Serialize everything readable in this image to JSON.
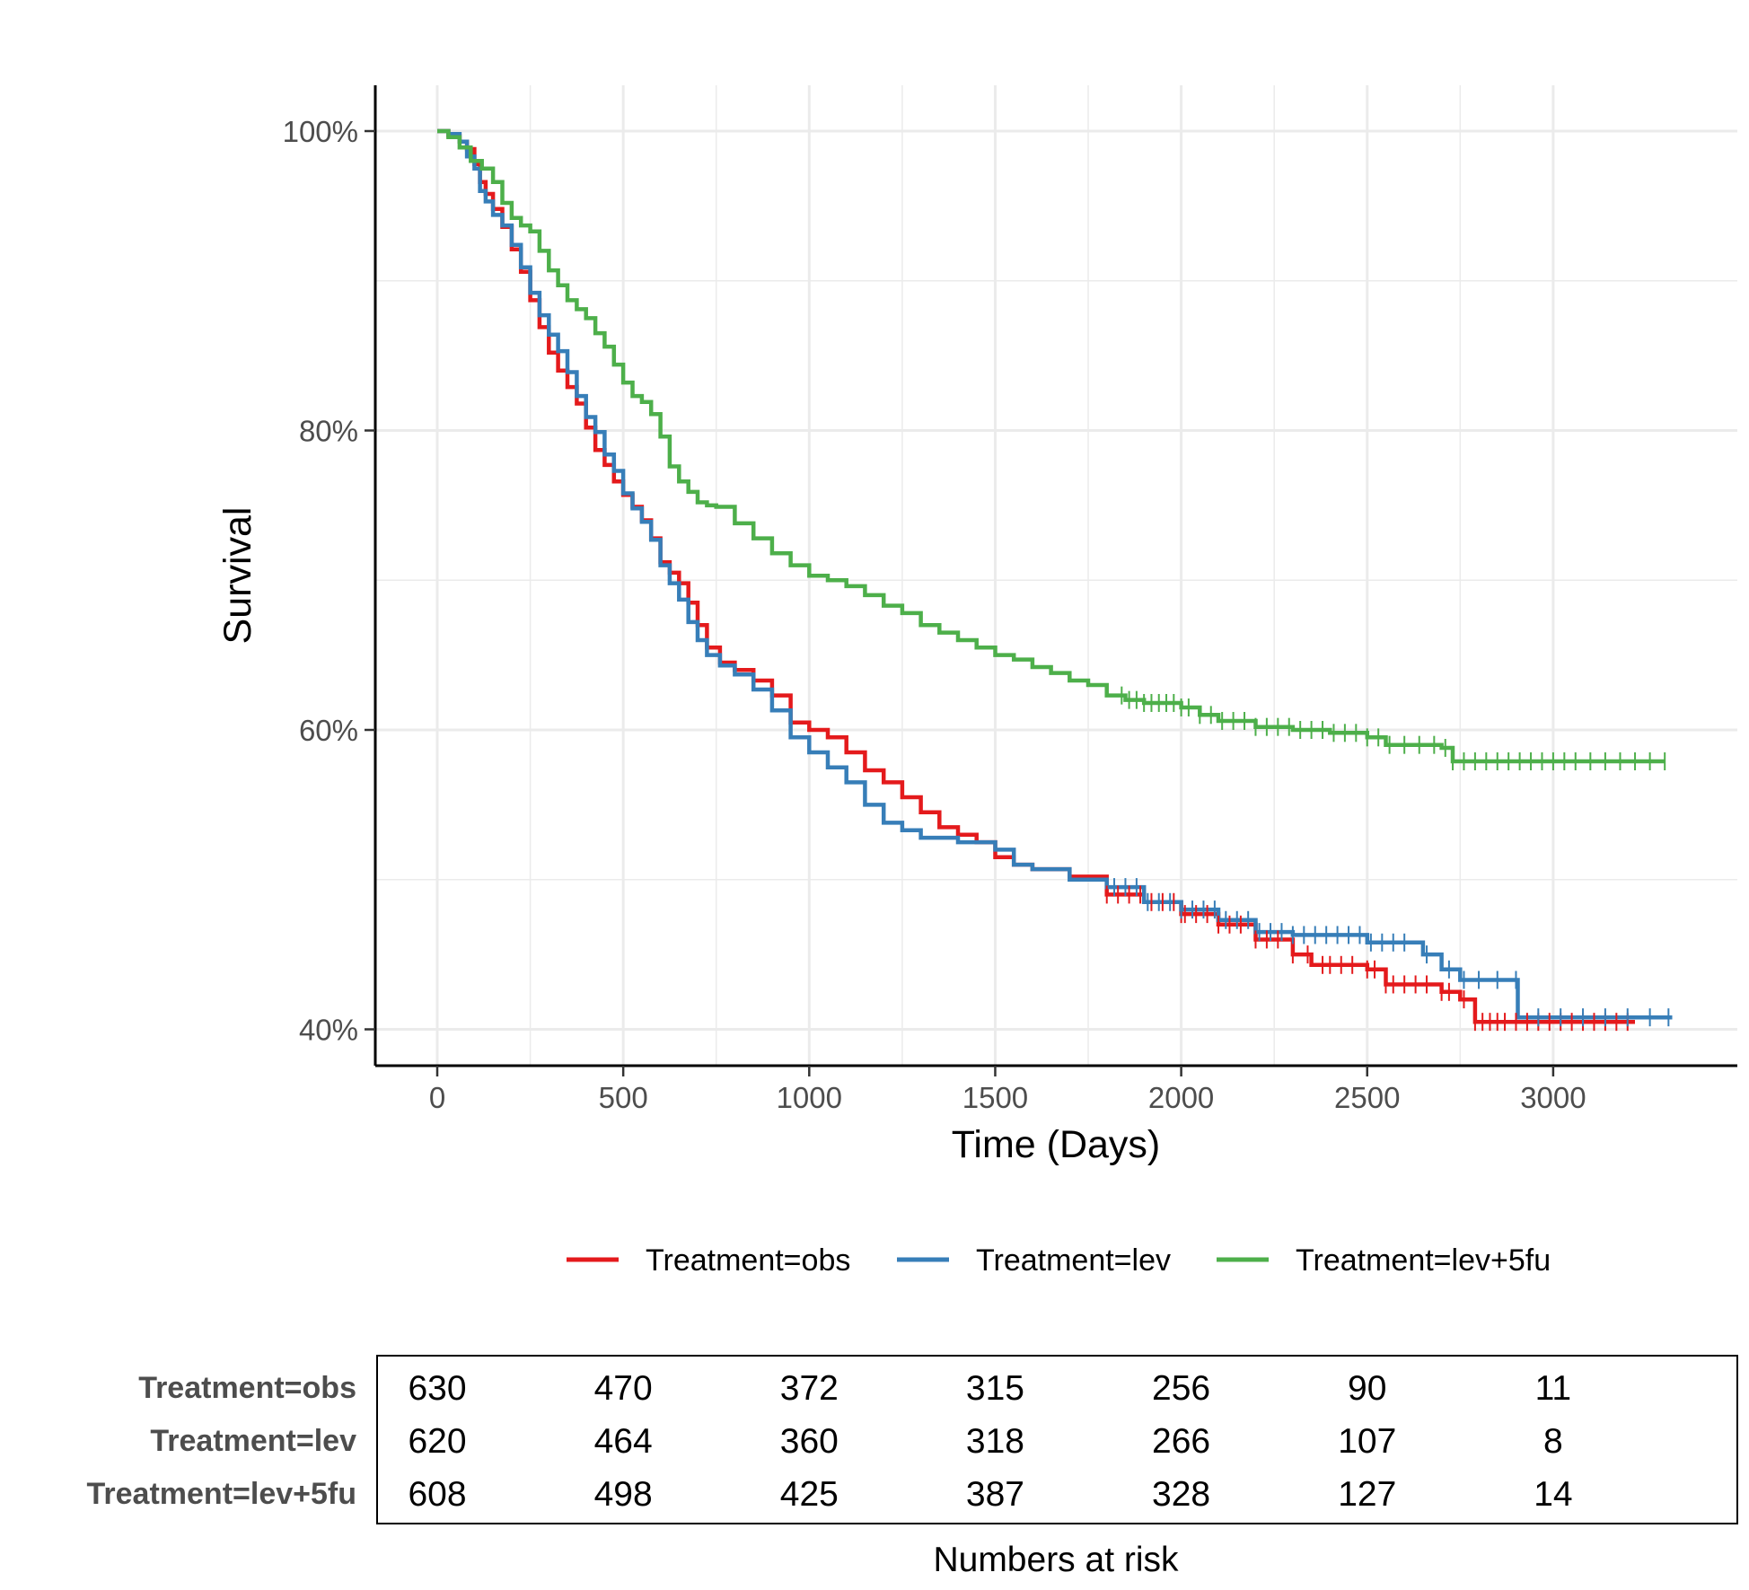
{
  "chart_data": {
    "type": "line",
    "subtype": "kaplan-meier",
    "title": "",
    "xlabel": "Time (Days)",
    "ylabel": "Survival",
    "xlim": [
      -170,
      3480
    ],
    "ylim": [
      37.5,
      103
    ],
    "x_ticks": [
      0,
      500,
      1000,
      1500,
      2000,
      2500,
      3000
    ],
    "x_tick_labels": [
      "0",
      "500",
      "1000",
      "1500",
      "2000",
      "2500",
      "3000"
    ],
    "y_ticks": [
      40,
      60,
      80,
      100
    ],
    "y_tick_labels": [
      "40%",
      "60%",
      "80%",
      "100%"
    ],
    "grid": true,
    "legend_position": "bottom",
    "series": [
      {
        "name": "Treatment=obs",
        "color": "#e41a1c",
        "points": [
          [
            0,
            100
          ],
          [
            30,
            99.7
          ],
          [
            60,
            99.3
          ],
          [
            80,
            98.8
          ],
          [
            100,
            97.8
          ],
          [
            115,
            96.6
          ],
          [
            130,
            95.8
          ],
          [
            150,
            94.8
          ],
          [
            175,
            93.6
          ],
          [
            200,
            92.1
          ],
          [
            225,
            90.6
          ],
          [
            250,
            88.7
          ],
          [
            275,
            86.9
          ],
          [
            300,
            85.2
          ],
          [
            325,
            84.0
          ],
          [
            350,
            82.9
          ],
          [
            375,
            81.8
          ],
          [
            400,
            80.2
          ],
          [
            425,
            78.7
          ],
          [
            450,
            77.7
          ],
          [
            475,
            76.6
          ],
          [
            500,
            75.7
          ],
          [
            525,
            74.9
          ],
          [
            550,
            74.0
          ],
          [
            575,
            72.8
          ],
          [
            600,
            71.2
          ],
          [
            625,
            70.5
          ],
          [
            650,
            69.8
          ],
          [
            675,
            68.5
          ],
          [
            700,
            67.0
          ],
          [
            725,
            65.5
          ],
          [
            760,
            64.5
          ],
          [
            800,
            64.0
          ],
          [
            850,
            63.3
          ],
          [
            900,
            62.3
          ],
          [
            950,
            60.5
          ],
          [
            1000,
            60.0
          ],
          [
            1050,
            59.5
          ],
          [
            1100,
            58.5
          ],
          [
            1150,
            57.3
          ],
          [
            1200,
            56.5
          ],
          [
            1250,
            55.5
          ],
          [
            1300,
            54.5
          ],
          [
            1350,
            53.5
          ],
          [
            1400,
            53.0
          ],
          [
            1450,
            52.5
          ],
          [
            1500,
            51.5
          ],
          [
            1550,
            51.0
          ],
          [
            1600,
            50.7
          ],
          [
            1700,
            50.2
          ],
          [
            1800,
            49.0
          ],
          [
            1900,
            48.5
          ],
          [
            2000,
            47.7
          ],
          [
            2100,
            47.0
          ],
          [
            2200,
            46.0
          ],
          [
            2300,
            45.0
          ],
          [
            2350,
            44.3
          ],
          [
            2500,
            44.0
          ],
          [
            2550,
            43.0
          ],
          [
            2700,
            42.5
          ],
          [
            2750,
            42.0
          ],
          [
            2790,
            40.5
          ],
          [
            3220,
            40.5
          ]
        ],
        "censor_x": [
          1800,
          1830,
          1860,
          1890,
          1920,
          1950,
          1980,
          2000,
          2010,
          2040,
          2070,
          2100,
          2130,
          2160,
          2200,
          2230,
          2260,
          2300,
          2340,
          2380,
          2400,
          2430,
          2460,
          2500,
          2520,
          2550,
          2570,
          2600,
          2630,
          2660,
          2700,
          2720,
          2760,
          2790,
          2810,
          2830,
          2850,
          2870,
          2900,
          2930,
          2960,
          2990,
          3020,
          3050,
          3080,
          3110,
          3140,
          3170,
          3200
        ]
      },
      {
        "name": "Treatment=lev",
        "color": "#377eb8",
        "points": [
          [
            0,
            100
          ],
          [
            30,
            99.8
          ],
          [
            60,
            99.3
          ],
          [
            80,
            98.3
          ],
          [
            100,
            97.5
          ],
          [
            115,
            96.0
          ],
          [
            130,
            95.3
          ],
          [
            150,
            94.4
          ],
          [
            175,
            93.7
          ],
          [
            200,
            92.4
          ],
          [
            225,
            90.9
          ],
          [
            250,
            89.2
          ],
          [
            275,
            87.7
          ],
          [
            300,
            86.4
          ],
          [
            325,
            85.3
          ],
          [
            350,
            83.9
          ],
          [
            375,
            82.3
          ],
          [
            400,
            80.9
          ],
          [
            425,
            79.9
          ],
          [
            450,
            78.4
          ],
          [
            475,
            77.3
          ],
          [
            500,
            75.8
          ],
          [
            525,
            74.8
          ],
          [
            550,
            73.9
          ],
          [
            575,
            72.7
          ],
          [
            600,
            71.0
          ],
          [
            625,
            69.8
          ],
          [
            650,
            68.7
          ],
          [
            675,
            67.2
          ],
          [
            700,
            66.0
          ],
          [
            725,
            65.0
          ],
          [
            760,
            64.3
          ],
          [
            800,
            63.7
          ],
          [
            850,
            62.7
          ],
          [
            900,
            61.3
          ],
          [
            950,
            59.5
          ],
          [
            1000,
            58.5
          ],
          [
            1050,
            57.5
          ],
          [
            1100,
            56.5
          ],
          [
            1150,
            55.0
          ],
          [
            1200,
            53.8
          ],
          [
            1250,
            53.3
          ],
          [
            1300,
            52.8
          ],
          [
            1400,
            52.5
          ],
          [
            1500,
            52.0
          ],
          [
            1550,
            51.0
          ],
          [
            1600,
            50.7
          ],
          [
            1700,
            50.0
          ],
          [
            1800,
            49.5
          ],
          [
            1900,
            48.5
          ],
          [
            2000,
            48.0
          ],
          [
            2100,
            47.3
          ],
          [
            2200,
            46.5
          ],
          [
            2300,
            46.3
          ],
          [
            2500,
            45.8
          ],
          [
            2650,
            45.0
          ],
          [
            2700,
            44.0
          ],
          [
            2750,
            43.3
          ],
          [
            2900,
            43.3
          ],
          [
            2905,
            40.8
          ],
          [
            3320,
            40.8
          ]
        ],
        "censor_x": [
          1820,
          1850,
          1880,
          1910,
          1940,
          1970,
          2000,
          2030,
          2060,
          2090,
          2120,
          2150,
          2180,
          2210,
          2240,
          2270,
          2300,
          2330,
          2360,
          2390,
          2420,
          2450,
          2480,
          2510,
          2540,
          2570,
          2600,
          2660,
          2720,
          2760,
          2800,
          2850,
          2900,
          2960,
          3020,
          3080,
          3140,
          3200,
          3260,
          3310
        ]
      },
      {
        "name": "Treatment=lev+5fu",
        "color": "#4daf4a",
        "points": [
          [
            0,
            100
          ],
          [
            30,
            99.6
          ],
          [
            60,
            98.9
          ],
          [
            90,
            98.0
          ],
          [
            120,
            97.5
          ],
          [
            150,
            96.6
          ],
          [
            175,
            95.2
          ],
          [
            200,
            94.2
          ],
          [
            225,
            93.7
          ],
          [
            250,
            93.3
          ],
          [
            275,
            92.0
          ],
          [
            300,
            90.7
          ],
          [
            325,
            89.7
          ],
          [
            350,
            88.7
          ],
          [
            375,
            88.1
          ],
          [
            400,
            87.5
          ],
          [
            425,
            86.5
          ],
          [
            450,
            85.6
          ],
          [
            475,
            84.4
          ],
          [
            500,
            83.2
          ],
          [
            525,
            82.3
          ],
          [
            550,
            81.9
          ],
          [
            575,
            81.1
          ],
          [
            600,
            79.6
          ],
          [
            625,
            77.6
          ],
          [
            650,
            76.6
          ],
          [
            675,
            75.9
          ],
          [
            700,
            75.2
          ],
          [
            725,
            75.0
          ],
          [
            750,
            74.9
          ],
          [
            800,
            73.8
          ],
          [
            850,
            72.8
          ],
          [
            900,
            71.8
          ],
          [
            950,
            71.0
          ],
          [
            1000,
            70.3
          ],
          [
            1050,
            70.0
          ],
          [
            1100,
            69.6
          ],
          [
            1150,
            69.0
          ],
          [
            1200,
            68.3
          ],
          [
            1250,
            67.8
          ],
          [
            1300,
            67.0
          ],
          [
            1350,
            66.5
          ],
          [
            1400,
            66.0
          ],
          [
            1450,
            65.5
          ],
          [
            1500,
            65.0
          ],
          [
            1550,
            64.7
          ],
          [
            1600,
            64.2
          ],
          [
            1650,
            63.8
          ],
          [
            1700,
            63.3
          ],
          [
            1750,
            63.0
          ],
          [
            1800,
            62.3
          ],
          [
            1850,
            62.0
          ],
          [
            1900,
            61.8
          ],
          [
            2000,
            61.5
          ],
          [
            2050,
            61.0
          ],
          [
            2100,
            60.6
          ],
          [
            2200,
            60.2
          ],
          [
            2300,
            60.0
          ],
          [
            2400,
            59.8
          ],
          [
            2500,
            59.5
          ],
          [
            2550,
            59.0
          ],
          [
            2700,
            58.8
          ],
          [
            2730,
            57.9
          ],
          [
            3300,
            57.9
          ]
        ],
        "censor_x": [
          1840,
          1860,
          1880,
          1900,
          1920,
          1940,
          1960,
          1980,
          2000,
          2020,
          2050,
          2080,
          2110,
          2140,
          2170,
          2200,
          2230,
          2260,
          2290,
          2320,
          2350,
          2380,
          2410,
          2440,
          2470,
          2500,
          2530,
          2560,
          2600,
          2640,
          2680,
          2710,
          2730,
          2760,
          2790,
          2820,
          2850,
          2880,
          2910,
          2940,
          2970,
          3000,
          3030,
          3060,
          3100,
          3140,
          3180,
          3220,
          3260,
          3300
        ]
      }
    ],
    "risk_table": {
      "title": "Numbers at risk",
      "time_points": [
        0,
        500,
        1000,
        1500,
        2000,
        2500,
        3000
      ],
      "rows": [
        {
          "label": "Treatment=obs",
          "values": [
            630,
            470,
            372,
            315,
            256,
            90,
            11
          ]
        },
        {
          "label": "Treatment=lev",
          "values": [
            620,
            464,
            360,
            318,
            266,
            107,
            8
          ]
        },
        {
          "label": "Treatment=lev+5fu",
          "values": [
            608,
            498,
            425,
            387,
            328,
            127,
            14
          ]
        }
      ]
    }
  }
}
